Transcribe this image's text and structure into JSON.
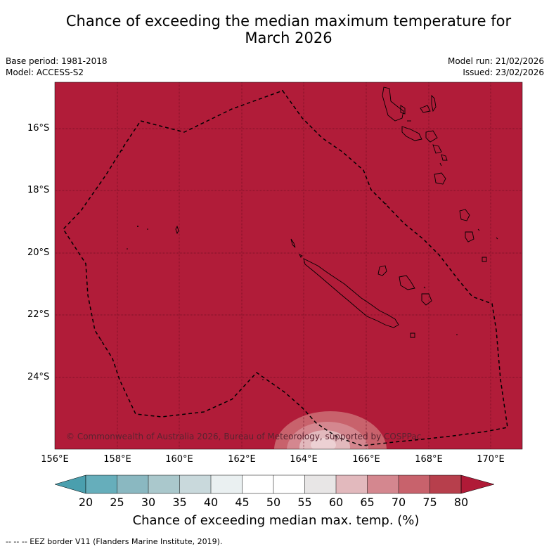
{
  "title_line1": "Chance of exceeding the median maximum temperature for",
  "title_line2": "March 2026",
  "base_period": "Base period: 1981-2018",
  "model": "Model: ACCESS-S2",
  "model_run": "Model run: 21/02/2026",
  "issued": "Issued: 23/02/2026",
  "lat_labels": [
    "16°S",
    "18°S",
    "20°S",
    "22°S",
    "24°S"
  ],
  "lon_labels": [
    "156°E",
    "158°E",
    "160°E",
    "162°E",
    "164°E",
    "166°E",
    "168°E",
    "170°E"
  ],
  "copyright": "© Commonwealth of Australia 2026, Bureau of Meteorology, supported by COSPPac",
  "colorbar": {
    "ticks": [
      "20",
      "25",
      "30",
      "35",
      "40",
      "45",
      "50",
      "55",
      "60",
      "65",
      "70",
      "75",
      "80"
    ],
    "colors": [
      "#4a9fae",
      "#66aebb",
      "#8ab8c1",
      "#aac8cc",
      "#c9d9dc",
      "#eaf0f1",
      "#ffffff",
      "#ffffff",
      "#e8e6e6",
      "#e2b9bd",
      "#d4878f",
      "#c8626c",
      "#b73f4c",
      "#b01a37"
    ],
    "title": "Chance of exceeding median max. temp. (%)"
  },
  "footer": "--  --  -- EEZ border V11 (Flanders Marine Institute, 2019).",
  "colors": {
    "background": "#b11c39",
    "grid": "#7a1024"
  }
}
